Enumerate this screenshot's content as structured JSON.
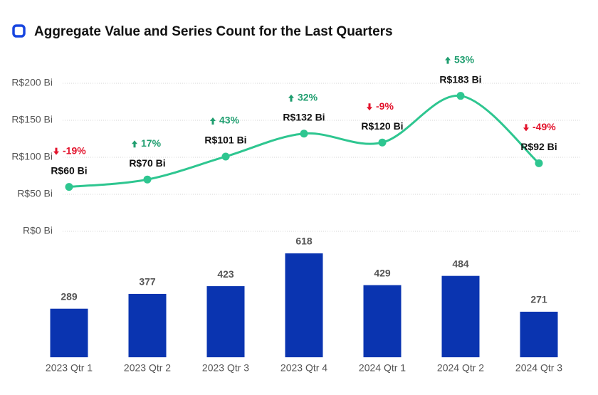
{
  "chart_data": [
    {
      "type": "line",
      "title": "Aggregate Value and Series Count for the Last Quarters",
      "categories": [
        "2023 Qtr 1",
        "2023 Qtr 2",
        "2023 Qtr 3",
        "2023 Qtr 4",
        "2024 Qtr 1",
        "2024 Qtr 2",
        "2024 Qtr 3"
      ],
      "values": [
        60,
        70,
        101,
        132,
        120,
        183,
        92
      ],
      "value_labels": [
        "R$60 Bi",
        "R$70 Bi",
        "R$101 Bi",
        "R$132 Bi",
        "R$120 Bi",
        "R$183 Bi",
        "R$92 Bi"
      ],
      "changes": [
        -19,
        17,
        43,
        32,
        -9,
        53,
        -49
      ],
      "change_labels": [
        "-19%",
        "17%",
        "43%",
        "32%",
        "-9%",
        "53%",
        "-49%"
      ],
      "color": "#2ec690",
      "up_color": "#1f9e6f",
      "down_color": "#e3132c",
      "ylim": [
        0,
        200
      ],
      "yticks": [
        {
          "value": 0,
          "label": "R$0 Bi"
        },
        {
          "value": 50,
          "label": "R$50 Bi"
        },
        {
          "value": 100,
          "label": "R$100 Bi"
        },
        {
          "value": 150,
          "label": "R$150 Bi"
        },
        {
          "value": 200,
          "label": "R$200 Bi"
        }
      ],
      "grid": true
    },
    {
      "type": "bar",
      "values": [
        289,
        377,
        423,
        618,
        429,
        484,
        271
      ],
      "color": "#0a34b0"
    }
  ]
}
